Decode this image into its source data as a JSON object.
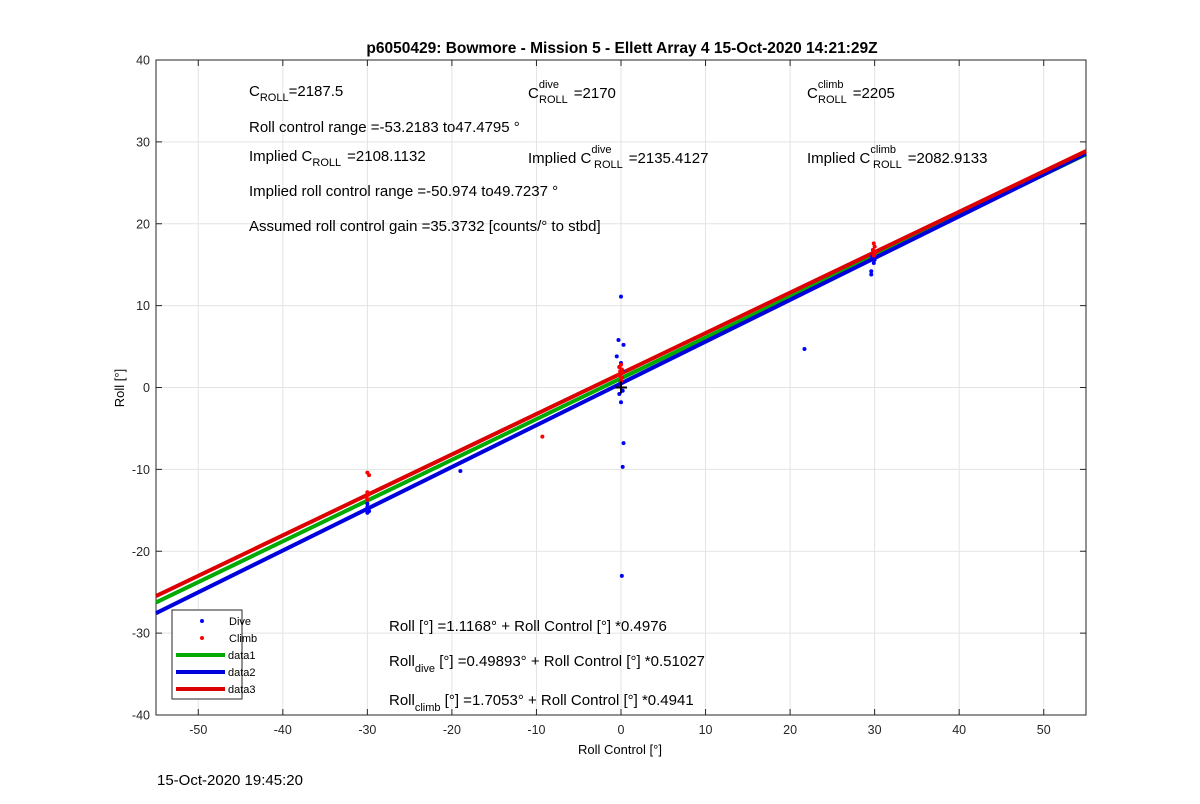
{
  "chart_data": {
    "type": "scatter",
    "title": "p6050429: Bowmore - Mission 5 - Ellett Array 4 15-Oct-2020 14:21:29Z",
    "xlabel": "Roll Control [°]",
    "ylabel": "Roll [°]",
    "xlim": [
      -55,
      55
    ],
    "ylim": [
      -40,
      40
    ],
    "xticks": [
      -50,
      -40,
      -30,
      -20,
      -10,
      0,
      10,
      20,
      30,
      40,
      50
    ],
    "yticks": [
      -40,
      -30,
      -20,
      -10,
      0,
      10,
      20,
      30,
      40
    ],
    "grid": true,
    "legend_position": "bottom-left",
    "series": [
      {
        "name": "Dive",
        "kind": "points",
        "color": "#0000ff",
        "points": [
          [
            -30,
            -14.2
          ],
          [
            -30,
            -14.6
          ],
          [
            -30,
            -15.0
          ],
          [
            -30,
            -15.3
          ],
          [
            -29.9,
            -14.8
          ],
          [
            -30.1,
            -14.9
          ],
          [
            -29.8,
            -15.1
          ],
          [
            -19,
            -10.2
          ],
          [
            0,
            11.1
          ],
          [
            -0.3,
            5.8
          ],
          [
            0.3,
            5.2
          ],
          [
            -0.5,
            3.8
          ],
          [
            0,
            3.0
          ],
          [
            -0.2,
            2.5
          ],
          [
            0.2,
            2.0
          ],
          [
            0.1,
            1.2
          ],
          [
            -0.1,
            0.5
          ],
          [
            0.2,
            -0.4
          ],
          [
            -0.2,
            -0.8
          ],
          [
            0,
            -1.8
          ],
          [
            0.3,
            -6.8
          ],
          [
            0.2,
            -9.7
          ],
          [
            0.1,
            -23.0
          ],
          [
            21.7,
            4.7
          ],
          [
            29.8,
            16.8
          ],
          [
            29.7,
            16.0
          ],
          [
            30,
            15.6
          ],
          [
            29.9,
            15.2
          ],
          [
            29.6,
            14.2
          ],
          [
            29.6,
            13.8
          ]
        ]
      },
      {
        "name": "Climb",
        "kind": "points",
        "color": "#ff0000",
        "points": [
          [
            -30,
            -10.4
          ],
          [
            -29.8,
            -10.7
          ],
          [
            -30,
            -12.8
          ],
          [
            -29.9,
            -13.1
          ],
          [
            -30.1,
            -13.4
          ],
          [
            -30,
            -13.7
          ],
          [
            -9.3,
            -6.0
          ],
          [
            0,
            2.8
          ],
          [
            -0.2,
            2.5
          ],
          [
            0.1,
            2.2
          ],
          [
            -0.1,
            2.0
          ],
          [
            0.2,
            1.8
          ],
          [
            -0.3,
            1.5
          ],
          [
            0.1,
            1.2
          ],
          [
            0,
            0.8
          ],
          [
            29.9,
            17.6
          ],
          [
            30,
            17.2
          ],
          [
            29.8,
            16.8
          ],
          [
            30.1,
            16.5
          ],
          [
            29.9,
            16.1
          ]
        ]
      },
      {
        "name": "data1",
        "kind": "line",
        "color": "#00aa00",
        "intercept": 1.1168,
        "slope": 0.4976
      },
      {
        "name": "data2",
        "kind": "line",
        "color": "#0000dd",
        "intercept": 0.49893,
        "slope": 0.51027
      },
      {
        "name": "data3",
        "kind": "line",
        "color": "#dd0000",
        "intercept": 1.7053,
        "slope": 0.4941
      }
    ],
    "origin_marker": {
      "x": 0,
      "y": 0,
      "color": "#000000"
    },
    "annotations": {
      "c_roll": {
        "base": "C",
        "sub": "ROLL",
        "sup": "",
        "value": "=2187.5"
      },
      "c_roll_dive": {
        "base": "C",
        "sub": "ROLL",
        "sup": "dive",
        "value": "=2170"
      },
      "c_roll_climb": {
        "base": "C",
        "sub": "ROLL",
        "sup": "climb",
        "value": "=2205"
      },
      "roll_range": "Roll control range =-53.2183 to47.4795 °",
      "implied_c_roll": {
        "prefix": "Implied ",
        "base": "C",
        "sub": "ROLL",
        "sup": "",
        "value": "=2108.1132"
      },
      "implied_c_roll_dive": {
        "prefix": "Implied ",
        "base": "C",
        "sub": "ROLL",
        "sup": "dive",
        "value": "=2135.4127"
      },
      "implied_c_roll_climb": {
        "prefix": "Implied ",
        "base": "C",
        "sub": "ROLL",
        "sup": "climb",
        "value": "=2082.9133"
      },
      "implied_range": "Implied roll control range =-50.974 to49.7237 °",
      "gain": "Assumed roll control gain =35.3732 [counts/° to stbd]",
      "fit_all": {
        "base": "Roll",
        "sub": "",
        "rest": " [°] =1.1168° + Roll Control [°] *0.4976"
      },
      "fit_dive": {
        "base": "Roll",
        "sub": "dive",
        "rest": " [°] =0.49893° + Roll Control [°] *0.51027"
      },
      "fit_climb": {
        "base": "Roll",
        "sub": "climb",
        "rest": " [°] =1.7053° + Roll Control [°] *0.4941"
      }
    }
  },
  "footer": {
    "timestamp": "15-Oct-2020 19:45:20"
  }
}
